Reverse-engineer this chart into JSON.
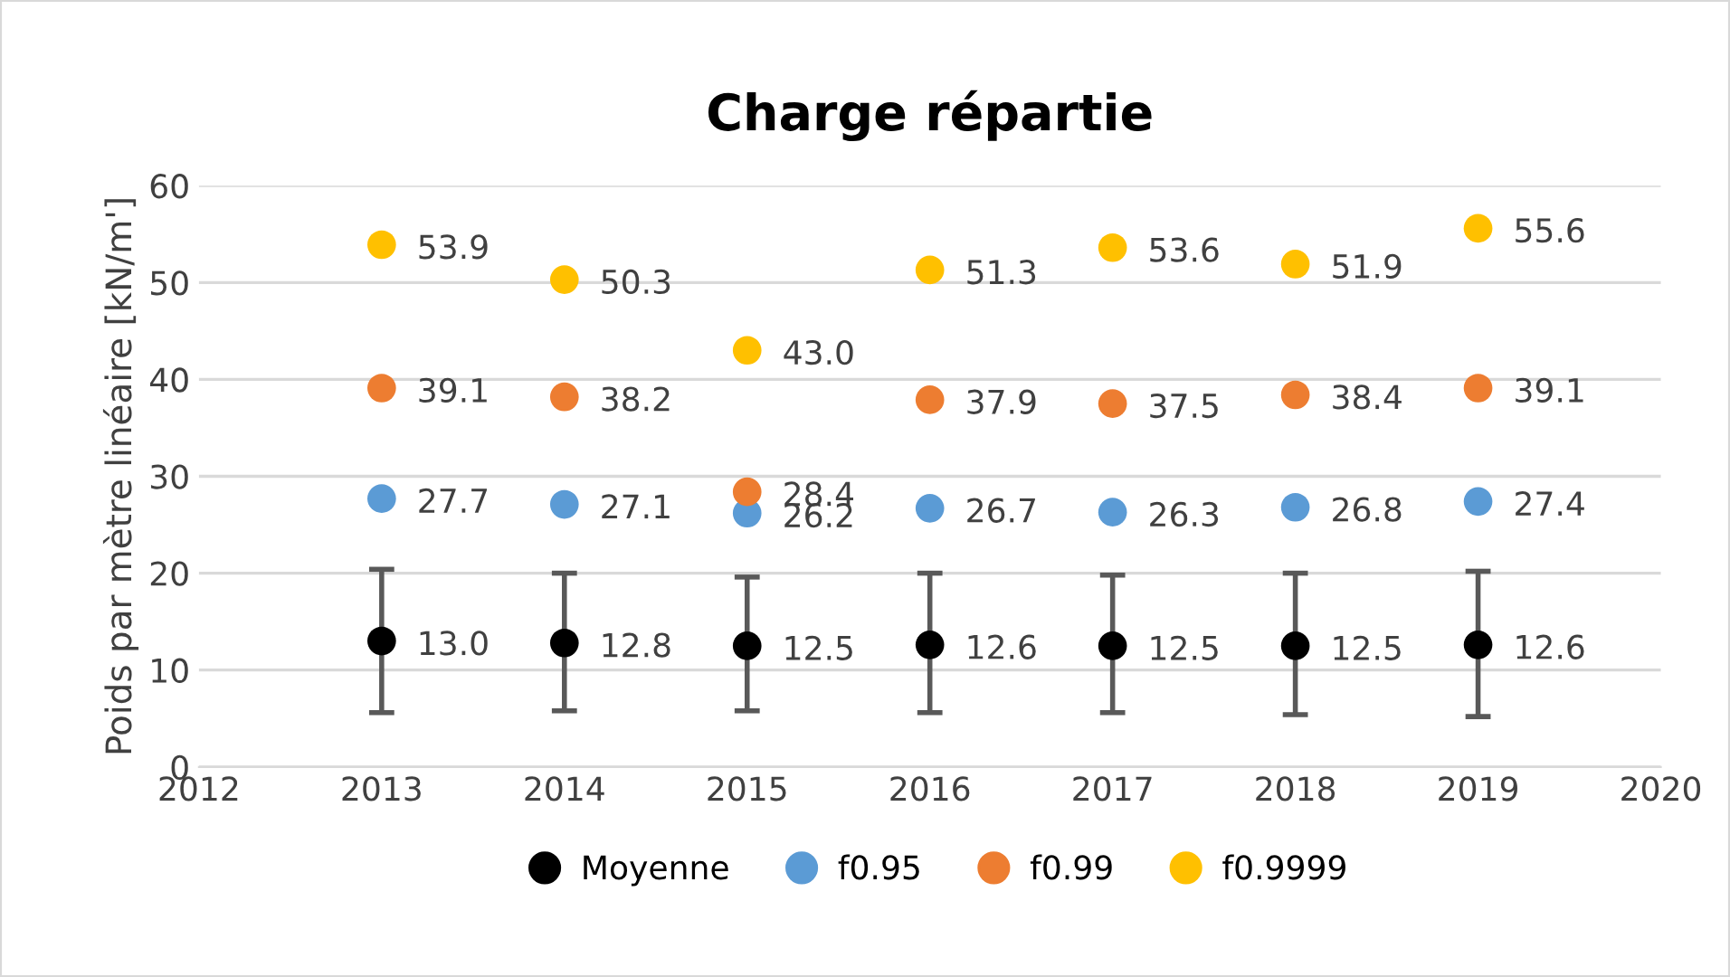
{
  "chart_data": {
    "type": "scatter",
    "title": "Charge répartie",
    "ylabel": "Poids par mètre linéaire [kN/m']",
    "x": [
      2013,
      2014,
      2015,
      2016,
      2017,
      2018,
      2019
    ],
    "series": [
      {
        "name": "Moyenne",
        "color": "#000000",
        "values": [
          13.0,
          12.8,
          12.5,
          12.6,
          12.5,
          12.5,
          12.6
        ],
        "value_labels": [
          "13.0",
          "12.8",
          "12.5",
          "12.6",
          "12.5",
          "12.5",
          "12.6"
        ],
        "errors": [
          [
            5.6,
            20.4
          ],
          [
            5.8,
            20.0
          ],
          [
            5.8,
            19.6
          ],
          [
            5.6,
            20.0
          ],
          [
            5.6,
            19.8
          ],
          [
            5.4,
            20.0
          ],
          [
            5.2,
            20.2
          ]
        ]
      },
      {
        "name": "f0.95",
        "color": "#5b9bd5",
        "values": [
          27.7,
          27.1,
          26.2,
          26.7,
          26.3,
          26.8,
          27.4
        ],
        "value_labels": [
          "27.7",
          "27.1",
          "26.2",
          "26.7",
          "26.3",
          "26.8",
          "27.4"
        ]
      },
      {
        "name": "f0.99",
        "color": "#ed7d31",
        "values": [
          39.1,
          38.2,
          28.4,
          37.9,
          37.5,
          38.4,
          39.1
        ],
        "value_labels": [
          "39.1",
          "38.2",
          "28.4",
          "37.9",
          "37.5",
          "38.4",
          "39.1"
        ]
      },
      {
        "name": "f0.9999",
        "color": "#ffc000",
        "values": [
          53.9,
          50.3,
          43.0,
          51.3,
          53.6,
          51.9,
          55.6
        ],
        "value_labels": [
          "53.9",
          "50.3",
          "43.0",
          "51.3",
          "53.6",
          "51.9",
          "55.6"
        ]
      }
    ],
    "xlim": [
      2012,
      2020
    ],
    "xticks": [
      2012,
      2013,
      2014,
      2015,
      2016,
      2017,
      2018,
      2019,
      2020
    ],
    "ylim": [
      0,
      60
    ],
    "yticks": [
      0,
      10,
      20,
      30,
      40,
      50,
      60
    ],
    "grid": "y",
    "legend": "bottom",
    "marker": "circle"
  }
}
